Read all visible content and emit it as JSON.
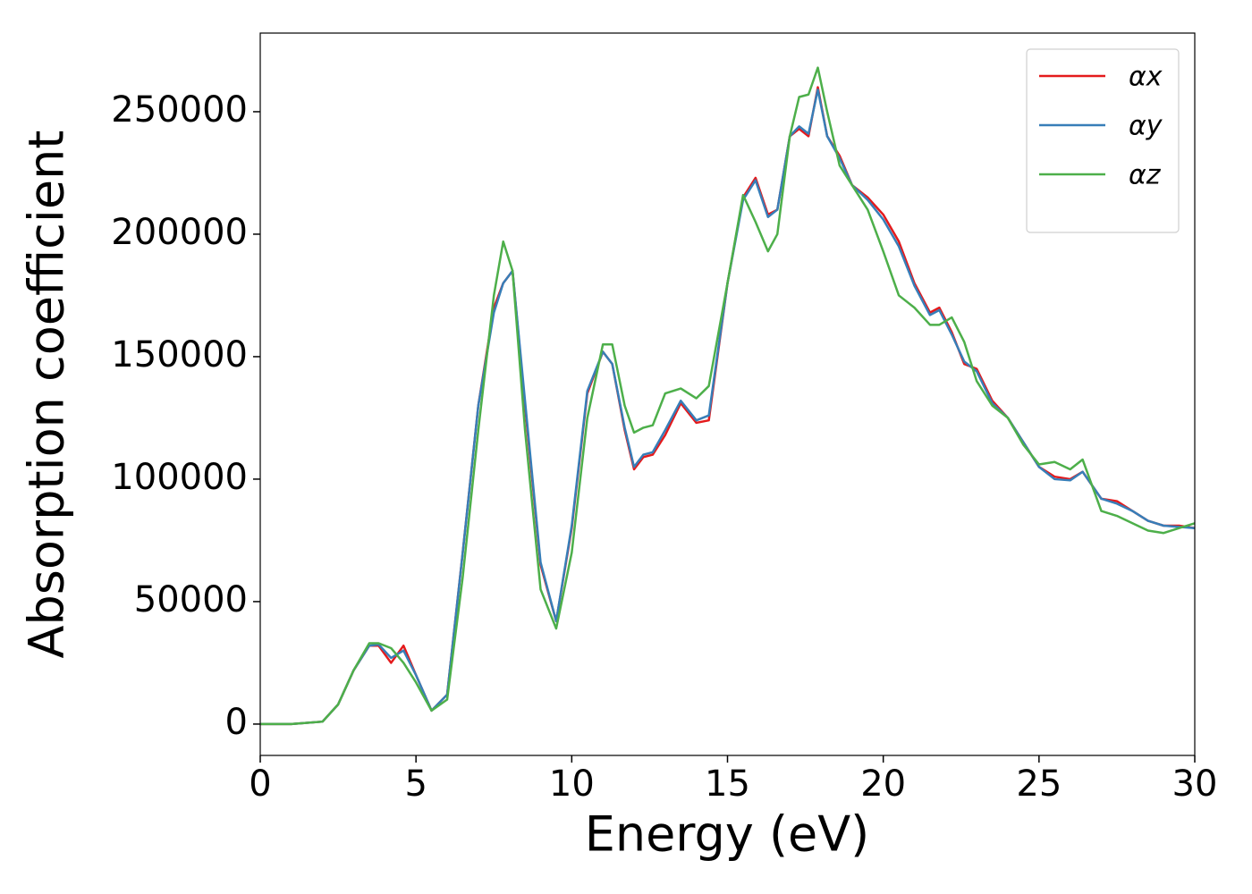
{
  "chart_data": {
    "type": "line",
    "xlabel": "Energy (eV)",
    "ylabel": "Absorption coefficient",
    "x": [
      0,
      1,
      2,
      2.5,
      3,
      3.5,
      3.8,
      4.2,
      4.6,
      5,
      5.5,
      6,
      6.5,
      7,
      7.5,
      7.8,
      8.1,
      8.5,
      9,
      9.5,
      10,
      10.5,
      11,
      11.3,
      11.7,
      12,
      12.3,
      12.6,
      13,
      13.5,
      14,
      14.4,
      15,
      15.5,
      15.9,
      16.3,
      16.6,
      17,
      17.3,
      17.6,
      17.9,
      18.2,
      18.6,
      19,
      19.5,
      20,
      20.5,
      21,
      21.5,
      21.8,
      22.2,
      22.6,
      23,
      23.5,
      24,
      24.5,
      25,
      25.5,
      26,
      26.4,
      27,
      27.5,
      28,
      28.5,
      29,
      29.5,
      30
    ],
    "series": [
      {
        "name": "αx",
        "color": "#e41a1c",
        "values": [
          0,
          0,
          1000,
          8000,
          22000,
          32000,
          32000,
          25000,
          32000,
          20000,
          5500,
          12000,
          70000,
          130000,
          170000,
          180000,
          185000,
          130000,
          65000,
          42000,
          80000,
          135000,
          152000,
          147000,
          120000,
          104000,
          109000,
          110000,
          118000,
          131000,
          123000,
          124000,
          180000,
          215000,
          223000,
          208000,
          210000,
          240000,
          243000,
          240000,
          260000,
          240000,
          232000,
          220000,
          215000,
          208000,
          197000,
          180000,
          168000,
          170000,
          160000,
          147000,
          145000,
          132000,
          125000,
          115000,
          105000,
          101000,
          100000,
          103000,
          92000,
          91000,
          87000,
          83000,
          81000,
          81000,
          80000
        ]
      },
      {
        "name": "αy",
        "color": "#377eb8",
        "values": [
          0,
          0,
          1000,
          8000,
          22000,
          32000,
          32500,
          27000,
          30000,
          20000,
          5500,
          12000,
          70000,
          130000,
          168000,
          180000,
          185000,
          132000,
          66000,
          42000,
          81000,
          136000,
          152000,
          147000,
          121000,
          105000,
          110000,
          111000,
          120000,
          132000,
          124000,
          126000,
          180000,
          214000,
          222000,
          207000,
          210000,
          240000,
          244000,
          241000,
          259000,
          240000,
          231000,
          220000,
          214000,
          206000,
          195000,
          179000,
          167000,
          169000,
          159000,
          148000,
          144000,
          131000,
          125000,
          115000,
          105000,
          100000,
          99500,
          103000,
          92000,
          90000,
          87000,
          83000,
          81000,
          80500,
          80000
        ]
      },
      {
        "name": "αz",
        "color": "#4daf4a",
        "values": [
          0,
          0,
          1000,
          8000,
          22000,
          33000,
          33000,
          31000,
          25000,
          17000,
          5500,
          10000,
          60000,
          120000,
          175000,
          197000,
          185000,
          120000,
          55000,
          39000,
          70000,
          125000,
          155000,
          155000,
          130000,
          119000,
          121000,
          122000,
          135000,
          137000,
          133000,
          138000,
          180000,
          216000,
          205000,
          193000,
          200000,
          240000,
          256000,
          257000,
          268000,
          250000,
          228000,
          220000,
          210000,
          193000,
          175000,
          170000,
          163000,
          163000,
          166000,
          156000,
          140000,
          130000,
          125000,
          114000,
          106000,
          107000,
          104000,
          108000,
          87000,
          85000,
          82000,
          79000,
          78000,
          80000,
          82000
        ]
      }
    ],
    "xlim": [
      0,
      30
    ],
    "xticks": [
      0,
      5,
      10,
      15,
      20,
      25,
      30
    ],
    "ylim": [
      -12800,
      282100
    ],
    "yticks": [
      0,
      50000,
      100000,
      150000,
      200000,
      250000
    ],
    "grid": false,
    "legend": "upper right"
  }
}
